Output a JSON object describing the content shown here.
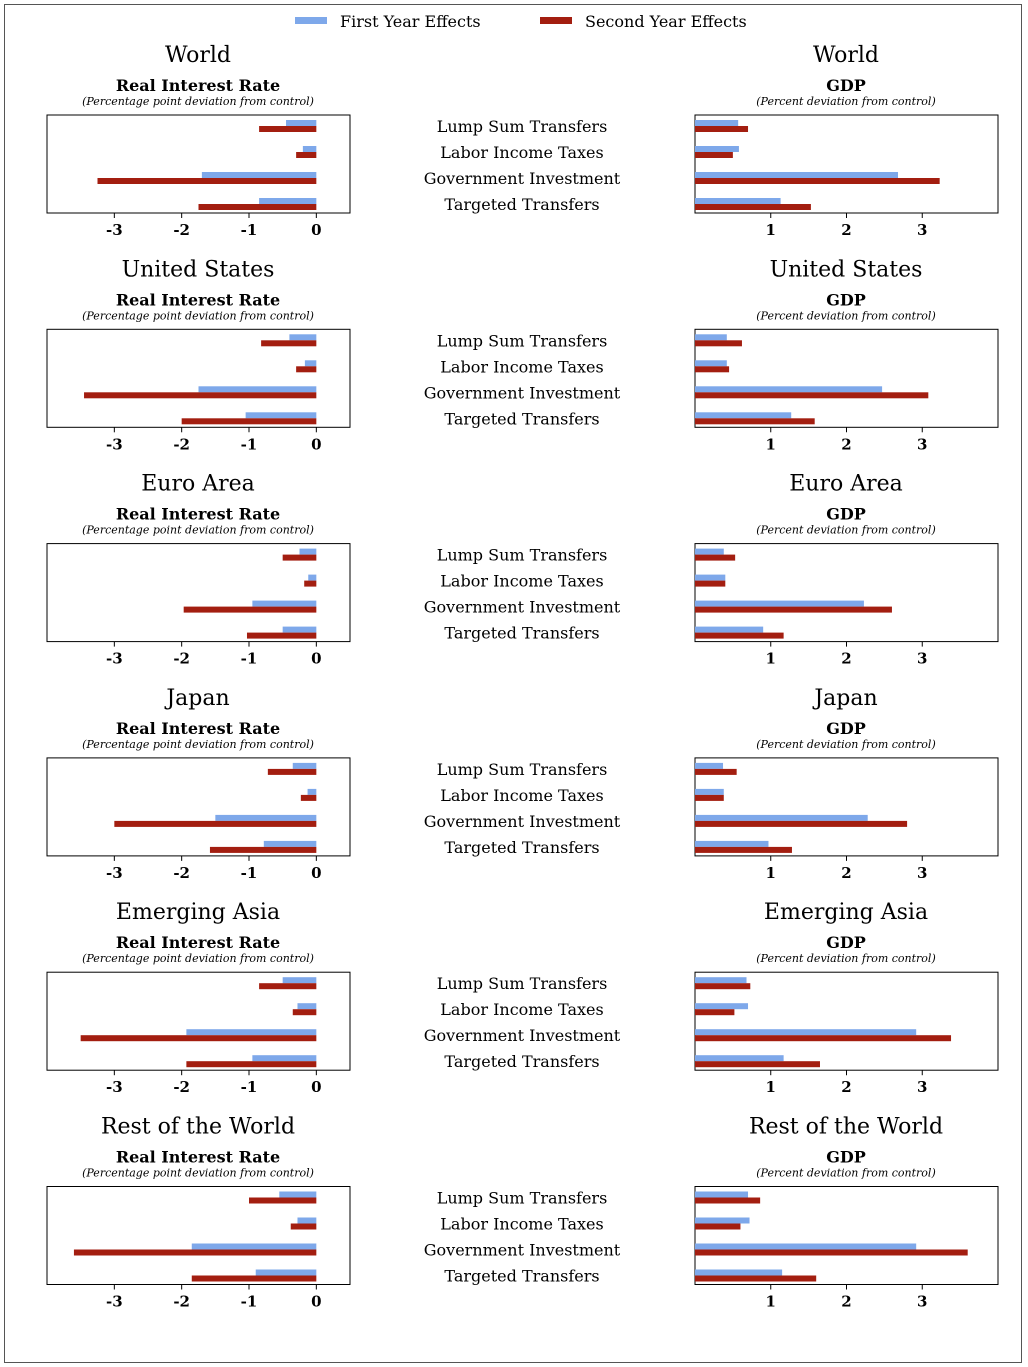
{
  "legend": {
    "first_label": "First Year Effects",
    "second_label": "Second Year Effects",
    "first_color": "#7ea8ea",
    "second_color": "#a31e10"
  },
  "left_panel": {
    "subtitle": "Real Interest Rate",
    "note": "(Percentage point deviation from control)"
  },
  "right_panel": {
    "subtitle": "GDP",
    "note": "(Percent deviation from control)"
  },
  "categories": [
    "Lump Sum Transfers",
    "Labor Income Taxes",
    "Government Investment",
    "Targeted Transfers"
  ],
  "chart_data": [
    {
      "type": "bar",
      "region": "World",
      "categories": [
        "Lump Sum Transfers",
        "Labor Income Taxes",
        "Government Investment",
        "Targeted Transfers"
      ],
      "rate": {
        "xlim": [
          -4,
          0.5
        ],
        "ticks": [
          -3,
          -2,
          -1,
          0
        ],
        "series": [
          {
            "name": "First Year Effects",
            "values": [
              -0.45,
              -0.2,
              -1.7,
              -0.85
            ]
          },
          {
            "name": "Second Year Effects",
            "values": [
              -0.85,
              -0.3,
              -3.25,
              -1.75
            ]
          }
        ]
      },
      "gdp": {
        "xlim": [
          0,
          4
        ],
        "ticks": [
          1,
          2,
          3
        ],
        "series": [
          {
            "name": "First Year Effects",
            "values": [
              0.57,
              0.58,
              2.68,
              1.13
            ]
          },
          {
            "name": "Second Year Effects",
            "values": [
              0.7,
              0.5,
              3.23,
              1.53
            ]
          }
        ]
      }
    },
    {
      "type": "bar",
      "region": "United States",
      "categories": [
        "Lump Sum Transfers",
        "Labor Income Taxes",
        "Government Investment",
        "Targeted Transfers"
      ],
      "rate": {
        "xlim": [
          -4,
          0.5
        ],
        "ticks": [
          -3,
          -2,
          -1,
          0
        ],
        "series": [
          {
            "name": "First Year Effects",
            "values": [
              -0.4,
              -0.17,
              -1.75,
              -1.05
            ]
          },
          {
            "name": "Second Year Effects",
            "values": [
              -0.82,
              -0.3,
              -3.45,
              -2.0
            ]
          }
        ]
      },
      "gdp": {
        "xlim": [
          0,
          4
        ],
        "ticks": [
          1,
          2,
          3
        ],
        "series": [
          {
            "name": "First Year Effects",
            "values": [
              0.42,
              0.42,
              2.47,
              1.27
            ]
          },
          {
            "name": "Second Year Effects",
            "values": [
              0.62,
              0.45,
              3.08,
              1.58
            ]
          }
        ]
      }
    },
    {
      "type": "bar",
      "region": "Euro Area",
      "categories": [
        "Lump Sum Transfers",
        "Labor Income Taxes",
        "Government Investment",
        "Targeted Transfers"
      ],
      "rate": {
        "xlim": [
          -4,
          0.5
        ],
        "ticks": [
          -3,
          -2,
          -1,
          0
        ],
        "series": [
          {
            "name": "First Year Effects",
            "values": [
              -0.25,
              -0.12,
              -0.95,
              -0.5
            ]
          },
          {
            "name": "Second Year Effects",
            "values": [
              -0.5,
              -0.18,
              -1.97,
              -1.03
            ]
          }
        ]
      },
      "gdp": {
        "xlim": [
          0,
          4
        ],
        "ticks": [
          1,
          2,
          3
        ],
        "series": [
          {
            "name": "First Year Effects",
            "values": [
              0.38,
              0.4,
              2.23,
              0.9
            ]
          },
          {
            "name": "Second Year Effects",
            "values": [
              0.53,
              0.4,
              2.6,
              1.17
            ]
          }
        ]
      }
    },
    {
      "type": "bar",
      "region": "Japan",
      "categories": [
        "Lump Sum Transfers",
        "Labor Income Taxes",
        "Government Investment",
        "Targeted Transfers"
      ],
      "rate": {
        "xlim": [
          -4,
          0.5
        ],
        "ticks": [
          -3,
          -2,
          -1,
          0
        ],
        "series": [
          {
            "name": "First Year Effects",
            "values": [
              -0.35,
              -0.13,
              -1.5,
              -0.78
            ]
          },
          {
            "name": "Second Year Effects",
            "values": [
              -0.72,
              -0.23,
              -3.0,
              -1.58
            ]
          }
        ]
      },
      "gdp": {
        "xlim": [
          0,
          4
        ],
        "ticks": [
          1,
          2,
          3
        ],
        "series": [
          {
            "name": "First Year Effects",
            "values": [
              0.37,
              0.38,
              2.28,
              0.97
            ]
          },
          {
            "name": "Second Year Effects",
            "values": [
              0.55,
              0.38,
              2.8,
              1.28
            ]
          }
        ]
      }
    },
    {
      "type": "bar",
      "region": "Emerging Asia",
      "categories": [
        "Lump Sum Transfers",
        "Labor Income Taxes",
        "Government Investment",
        "Targeted Transfers"
      ],
      "rate": {
        "xlim": [
          -4,
          0.5
        ],
        "ticks": [
          -3,
          -2,
          -1,
          0
        ],
        "series": [
          {
            "name": "First Year Effects",
            "values": [
              -0.5,
              -0.28,
              -1.93,
              -0.95
            ]
          },
          {
            "name": "Second Year Effects",
            "values": [
              -0.85,
              -0.35,
              -3.5,
              -1.93
            ]
          }
        ]
      },
      "gdp": {
        "xlim": [
          0,
          4
        ],
        "ticks": [
          1,
          2,
          3
        ],
        "series": [
          {
            "name": "First Year Effects",
            "values": [
              0.68,
              0.7,
              2.92,
              1.17
            ]
          },
          {
            "name": "Second Year Effects",
            "values": [
              0.73,
              0.52,
              3.38,
              1.65
            ]
          }
        ]
      }
    },
    {
      "type": "bar",
      "region": "Rest of the World",
      "categories": [
        "Lump Sum Transfers",
        "Labor Income Taxes",
        "Government Investment",
        "Targeted Transfers"
      ],
      "rate": {
        "xlim": [
          -4,
          0.5
        ],
        "ticks": [
          -3,
          -2,
          -1,
          0
        ],
        "series": [
          {
            "name": "First Year Effects",
            "values": [
              -0.55,
              -0.28,
              -1.85,
              -0.9
            ]
          },
          {
            "name": "Second Year Effects",
            "values": [
              -1.0,
              -0.38,
              -3.6,
              -1.85
            ]
          }
        ]
      },
      "gdp": {
        "xlim": [
          0,
          4
        ],
        "ticks": [
          1,
          2,
          3
        ],
        "series": [
          {
            "name": "First Year Effects",
            "values": [
              0.7,
              0.72,
              2.92,
              1.15
            ]
          },
          {
            "name": "Second Year Effects",
            "values": [
              0.86,
              0.6,
              3.6,
              1.6
            ]
          }
        ]
      }
    }
  ]
}
